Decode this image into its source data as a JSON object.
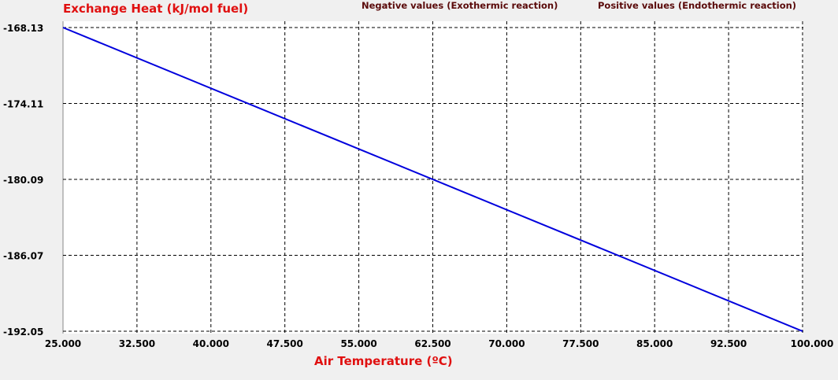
{
  "header": {
    "negative_note": "Negative values (Exothermic reaction)",
    "positive_note": "Positive values (Endothermic reaction)"
  },
  "chart_data": {
    "type": "line",
    "ylabel": "Exchange Heat (kJ/mol fuel)",
    "xlabel": "Air Temperature (ºC)",
    "xlim": [
      25,
      100
    ],
    "ylim": [
      -192.05,
      -168.13
    ],
    "xticks": [
      "25.000",
      "32.500",
      "40.000",
      "47.500",
      "55.000",
      "62.500",
      "70.000",
      "77.500",
      "85.000",
      "92.500",
      "100.000"
    ],
    "yticks": [
      "-168.13",
      "-174.11",
      "-180.09",
      "-186.07",
      "-192.05"
    ],
    "grid": true,
    "series": [
      {
        "color": "#0000dd",
        "x": [
          25,
          100
        ],
        "y": [
          -168.13,
          -192.05
        ]
      }
    ]
  }
}
